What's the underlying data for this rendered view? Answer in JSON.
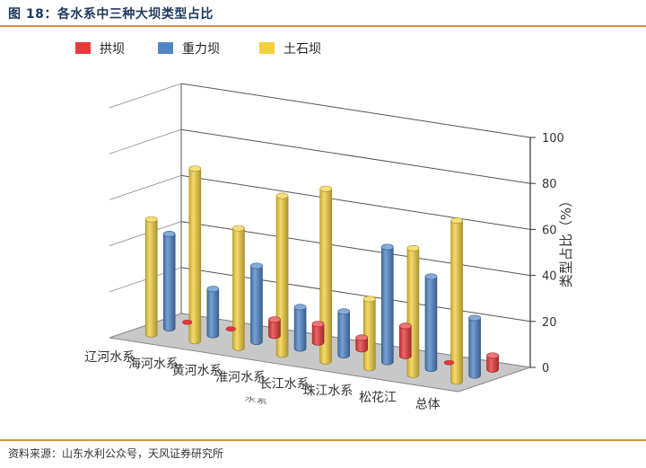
{
  "figure": {
    "title": "图 18：各水系中三种大坝类型占比",
    "source": "资料来源：山东水利公众号，天风证券研究所"
  },
  "chart_data": {
    "type": "bar",
    "subtype": "3d-clustered-bar",
    "title": "",
    "categories": [
      "辽河水系",
      "海河水系",
      "黄河水系",
      "淮河水系",
      "长江水系",
      "珠江水系",
      "松花江",
      "总体"
    ],
    "xlabel": "水系",
    "ylabel": "类型占比（%）",
    "ylim": [
      0,
      100
    ],
    "yticks": [
      0,
      20,
      40,
      60,
      80,
      100
    ],
    "grid": true,
    "legend_position": "top-left",
    "series": [
      {
        "name": "拱坝",
        "color": "#e8393c",
        "values": [
          0,
          0,
          7,
          8,
          5,
          13,
          0,
          6
        ]
      },
      {
        "name": "重力坝",
        "color": "#4f86c6",
        "values": [
          41,
          20,
          33,
          18,
          19,
          50,
          40,
          25
        ]
      },
      {
        "name": "土石坝",
        "color": "#f2d040",
        "values": [
          50,
          75,
          52,
          69,
          75,
          30,
          55,
          70
        ]
      }
    ]
  }
}
